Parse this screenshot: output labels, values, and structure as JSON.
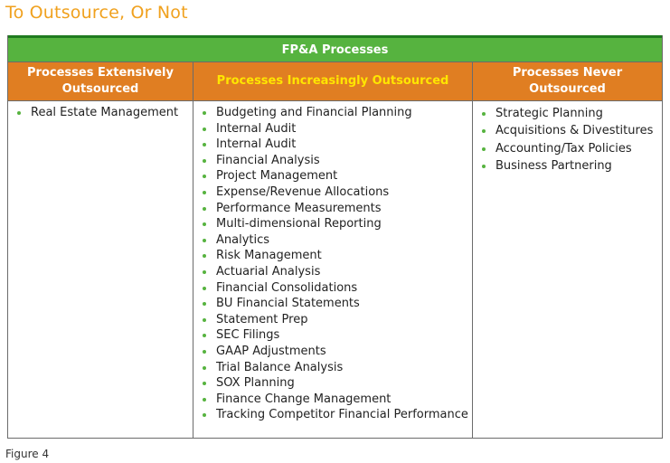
{
  "page": {
    "title": "To Outsource, Or Not",
    "caption": "Figure 4"
  },
  "colors": {
    "title": "#f0a11e",
    "group_header_bg": "#56b33f",
    "column_header_bg": "#e07e22",
    "highlight_text": "#ffe600",
    "bullet": "#56b33f"
  },
  "table": {
    "group_header": "FP&A Processes",
    "columns": [
      {
        "header": "Processes Extensively Outsourced",
        "items": [
          "Real Estate Management"
        ]
      },
      {
        "header": "Processes Increasingly Outsourced",
        "items": [
          "Budgeting and Financial Planning",
          "Internal Audit",
          "Internal Audit",
          "Financial Analysis",
          "Project Management",
          "Expense/Revenue Allocations",
          "Performance Measurements",
          "Multi-dimensional Reporting",
          "Analytics",
          "Risk Management",
          "Actuarial Analysis",
          "Financial Consolidations",
          "BU Financial Statements",
          "Statement Prep",
          "SEC Filings",
          "GAAP Adjustments",
          "Trial Balance Analysis",
          "SOX Planning",
          "Finance Change Management",
          "Tracking Competitor Financial Performance"
        ]
      },
      {
        "header": "Processes Never Outsourced",
        "items": [
          "Strategic Planning",
          "Acquisitions & Divestitures",
          "Accounting/Tax Policies",
          "Business Partnering"
        ]
      }
    ]
  }
}
